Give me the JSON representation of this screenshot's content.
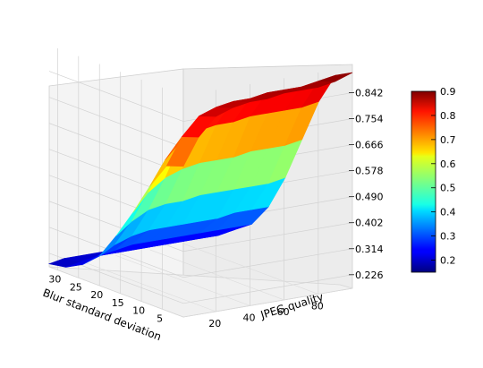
{
  "chart_data": {
    "type": "surface",
    "title": "",
    "xlabel": "JPEG quality",
    "ylabel": "Blur standard deviation",
    "zlabel": "",
    "x_ticks": [
      20,
      40,
      60,
      80
    ],
    "y_ticks": [
      5,
      10,
      15,
      20,
      25,
      30
    ],
    "z_ticks": [
      0.226,
      0.314,
      0.402,
      0.49,
      0.578,
      0.666,
      0.754,
      0.842
    ],
    "xlim": [
      1,
      100
    ],
    "ylim": [
      0,
      32
    ],
    "zlim": [
      0.18,
      0.93
    ],
    "grid": true,
    "colormap": "jet",
    "colorbar": {
      "min": 0.15,
      "max": 0.9,
      "ticks": [
        "0.2",
        "0.3",
        "0.4",
        "0.5",
        "0.6",
        "0.7",
        "0.8",
        "0.9"
      ],
      "placement": "right"
    },
    "surface_blur_values": [
      0,
      4,
      8,
      12,
      16,
      20,
      24,
      28,
      32
    ],
    "surface_jpeg_values": [
      1,
      10,
      20,
      30,
      40,
      50,
      60,
      70,
      80,
      90,
      100
    ],
    "surface_z": [
      [
        0.69,
        0.78,
        0.84,
        0.86,
        0.87,
        0.87,
        0.88,
        0.88,
        0.88,
        0.89,
        0.91
      ],
      [
        0.67,
        0.76,
        0.82,
        0.84,
        0.85,
        0.85,
        0.86,
        0.86,
        0.86,
        0.87,
        0.88
      ],
      [
        0.58,
        0.66,
        0.72,
        0.74,
        0.75,
        0.75,
        0.76,
        0.76,
        0.76,
        0.76,
        0.77
      ],
      [
        0.47,
        0.53,
        0.57,
        0.59,
        0.6,
        0.6,
        0.6,
        0.61,
        0.61,
        0.61,
        0.62
      ],
      [
        0.37,
        0.41,
        0.44,
        0.45,
        0.45,
        0.46,
        0.46,
        0.46,
        0.46,
        0.46,
        0.47
      ],
      [
        0.28,
        0.31,
        0.33,
        0.34,
        0.34,
        0.34,
        0.34,
        0.34,
        0.35,
        0.35,
        0.35
      ],
      [
        0.23,
        0.25,
        0.26,
        0.27,
        0.27,
        0.27,
        0.27,
        0.27,
        0.27,
        0.27,
        0.27
      ],
      [
        0.2,
        0.21,
        0.22,
        0.22,
        0.22,
        0.22,
        0.22,
        0.22,
        0.22,
        0.22,
        0.23
      ],
      [
        0.19,
        0.2,
        0.2,
        0.2,
        0.2,
        0.2,
        0.2,
        0.2,
        0.2,
        0.2,
        0.2
      ]
    ]
  }
}
